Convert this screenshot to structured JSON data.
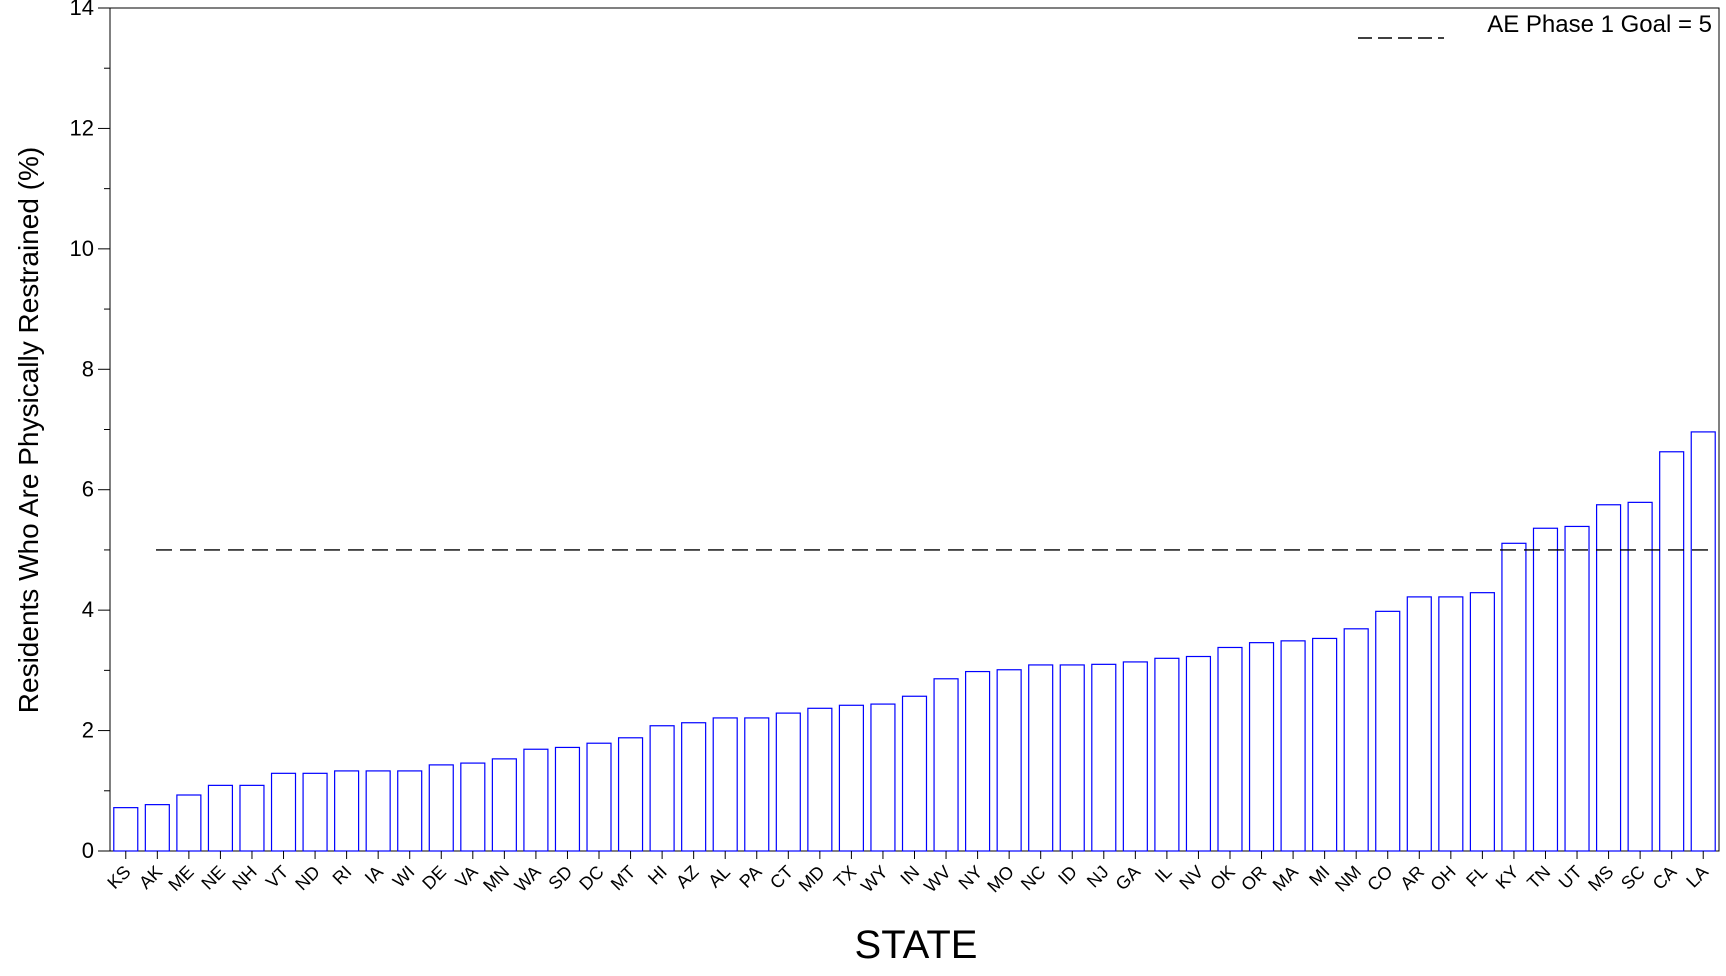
{
  "chart_data": {
    "type": "bar",
    "title": "",
    "xlabel": "STATE",
    "ylabel": "Residents Who Are Physically Restrained (%)",
    "ylim": [
      0,
      14
    ],
    "yticks": [
      0,
      2,
      4,
      6,
      8,
      10,
      12,
      14
    ],
    "grid": false,
    "legend_position": "top-right",
    "bar_outline_color": "#0000ff",
    "bar_fill_color": "#ffffff",
    "categories": [
      "KS",
      "AK",
      "ME",
      "NE",
      "NH",
      "VT",
      "ND",
      "RI",
      "IA",
      "WI",
      "DE",
      "VA",
      "MN",
      "WA",
      "SD",
      "DC",
      "MT",
      "HI",
      "AZ",
      "AL",
      "PA",
      "CT",
      "MD",
      "TX",
      "WY",
      "IN",
      "WV",
      "NY",
      "MO",
      "NC",
      "ID",
      "NJ",
      "GA",
      "IL",
      "NV",
      "OK",
      "OR",
      "MA",
      "MI",
      "NM",
      "CO",
      "AR",
      "OH",
      "FL",
      "KY",
      "TN",
      "UT",
      "MS",
      "SC",
      "CA",
      "LA"
    ],
    "values": [
      0.72,
      0.77,
      0.93,
      1.09,
      1.09,
      1.29,
      1.29,
      1.33,
      1.33,
      1.33,
      1.43,
      1.46,
      1.53,
      1.69,
      1.72,
      1.79,
      1.88,
      2.08,
      2.13,
      2.21,
      2.21,
      2.29,
      2.37,
      2.42,
      2.44,
      2.57,
      2.86,
      2.98,
      3.01,
      3.09,
      3.09,
      3.1,
      3.14,
      3.2,
      3.23,
      3.38,
      3.46,
      3.49,
      3.53,
      3.69,
      3.98,
      4.22,
      4.22,
      4.29,
      5.11,
      5.36,
      5.39,
      5.75,
      5.79,
      6.63,
      6.96
    ],
    "reference_line": {
      "value": 5,
      "style": "dashed",
      "color": "#000000",
      "label": "AE Phase 1 Goal = 5"
    }
  }
}
